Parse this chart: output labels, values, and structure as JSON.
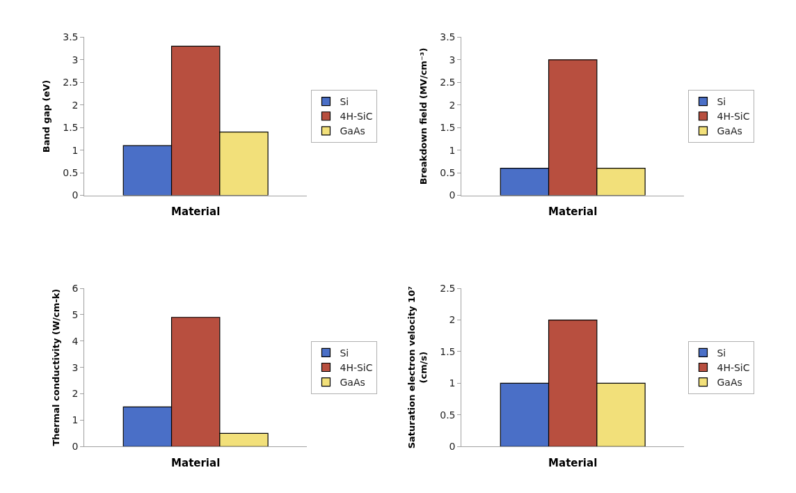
{
  "chart_data": [
    {
      "type": "bar",
      "categories": [
        null
      ],
      "xlabel": "Material",
      "ylabel": "Band gap (eV)",
      "ylim": [
        0,
        3.5
      ],
      "yticks": [
        0,
        0.5,
        1,
        1.5,
        2,
        2.5,
        3,
        3.5
      ],
      "legend": "right",
      "series": [
        {
          "name": "Si",
          "color": "#4a6fc7",
          "values": [
            1.1
          ]
        },
        {
          "name": "4H-SiC",
          "color": "#b84f3f",
          "values": [
            3.3
          ]
        },
        {
          "name": "GaAs",
          "color": "#f2e07a",
          "values": [
            1.4
          ]
        }
      ]
    },
    {
      "type": "bar",
      "categories": [
        null
      ],
      "xlabel": "Material",
      "ylabel": "Breakdown field (MV/cm⁻³)",
      "ylim": [
        0,
        3.5
      ],
      "yticks": [
        0,
        0.5,
        1,
        1.5,
        2,
        2.5,
        3,
        3.5
      ],
      "legend": "right",
      "series": [
        {
          "name": "Si",
          "color": "#4a6fc7",
          "values": [
            0.6
          ]
        },
        {
          "name": "4H-SiC",
          "color": "#b84f3f",
          "values": [
            3
          ]
        },
        {
          "name": "GaAs",
          "color": "#f2e07a",
          "values": [
            0.6
          ]
        }
      ]
    },
    {
      "type": "bar",
      "categories": [
        null
      ],
      "xlabel": "Material",
      "ylabel": "Thermal conductivity (W/cm-k)",
      "ylim": [
        0,
        6
      ],
      "yticks": [
        0,
        1,
        2,
        3,
        4,
        5,
        6
      ],
      "legend": "right",
      "series": [
        {
          "name": "Si",
          "color": "#4a6fc7",
          "values": [
            1.5
          ]
        },
        {
          "name": "4H-SiC",
          "color": "#b84f3f",
          "values": [
            4.9
          ]
        },
        {
          "name": "GaAs",
          "color": "#f2e07a",
          "values": [
            0.5
          ]
        }
      ]
    },
    {
      "type": "bar",
      "categories": [
        null
      ],
      "xlabel": "Material",
      "ylabel": "Saturation electron velocity 10⁷\n(cm/s)",
      "ylim": [
        0,
        2.5
      ],
      "yticks": [
        0,
        0.5,
        1,
        1.5,
        2,
        2.5
      ],
      "legend": "right",
      "series": [
        {
          "name": "Si",
          "color": "#4a6fc7",
          "values": [
            1
          ]
        },
        {
          "name": "4H-SiC",
          "color": "#b84f3f",
          "values": [
            2
          ]
        },
        {
          "name": "GaAs",
          "color": "#f2e07a",
          "values": [
            1
          ]
        }
      ]
    }
  ]
}
